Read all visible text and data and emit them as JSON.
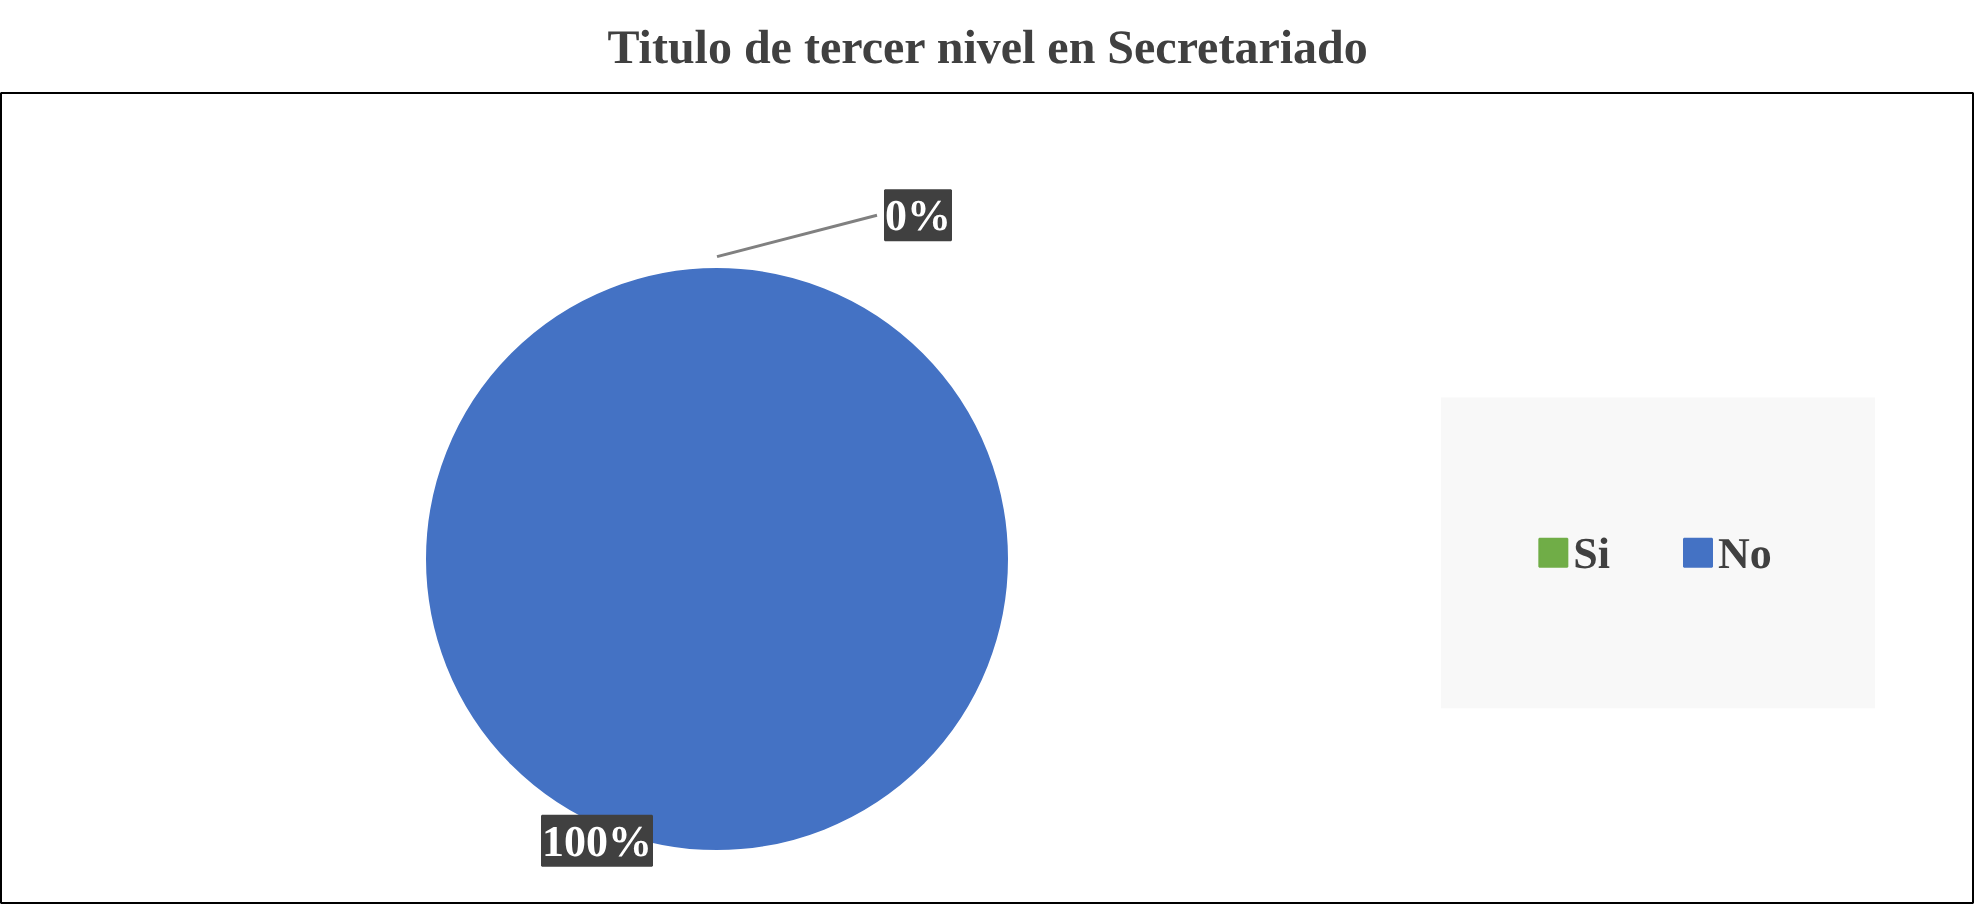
{
  "chart_data": {
    "type": "pie",
    "title": "Titulo de tercer nivel en Secretariado",
    "categories": [
      "Si",
      "No"
    ],
    "values": [
      0,
      100
    ],
    "colors": [
      "#70ad47",
      "#4472c4"
    ],
    "value_labels": [
      "0%",
      "100%"
    ],
    "legend": "right"
  }
}
